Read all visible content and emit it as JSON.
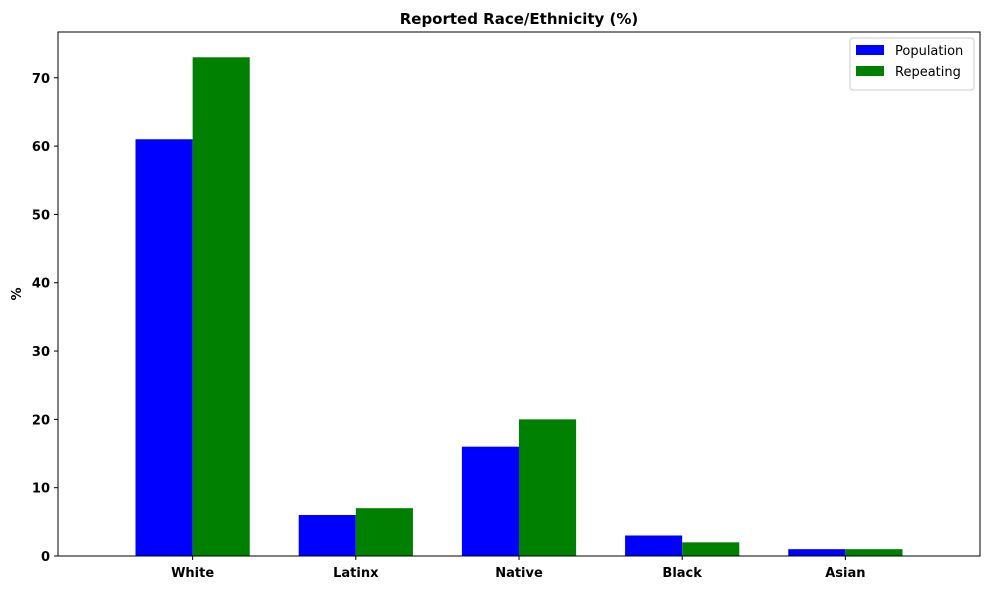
{
  "chart_data": {
    "type": "bar",
    "title": "Reported Race/Ethnicity (%)",
    "xlabel": "",
    "ylabel": "%",
    "categories": [
      "White",
      "Latinx",
      "Native",
      "Black",
      "Asian"
    ],
    "series": [
      {
        "name": "Population",
        "color": "#0000ff",
        "values": [
          61,
          6,
          16,
          3,
          1
        ]
      },
      {
        "name": "Repeating",
        "color": "#008000",
        "values": [
          73,
          7,
          20,
          2,
          1
        ]
      }
    ],
    "ylim": [
      0,
      76.7
    ],
    "yticks": [
      0,
      10,
      20,
      30,
      40,
      50,
      60,
      70
    ],
    "grid": false,
    "legend": "top-right"
  }
}
